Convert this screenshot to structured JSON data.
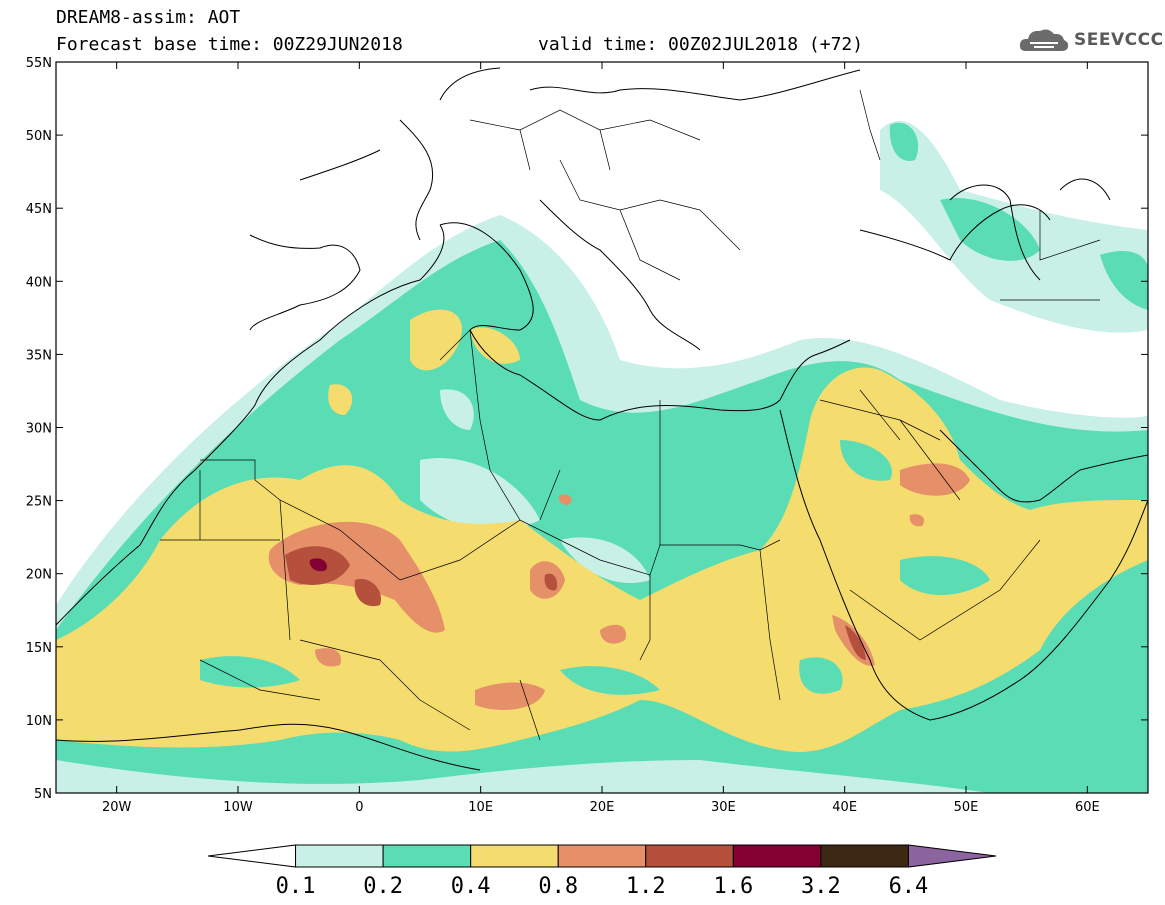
{
  "header": {
    "title": "DREAM8-assim: AOT",
    "base_time": "Forecast base time: 00Z29JUN2018",
    "valid_time": "valid time: 00Z02JUL2018 (+72)"
  },
  "logo": {
    "text": "SEEVCCC",
    "icon": "cloud-icon"
  },
  "map": {
    "lon_range": [
      -25,
      65
    ],
    "lat_range": [
      5,
      55
    ],
    "lat_ticks": [
      "55N",
      "50N",
      "45N",
      "40N",
      "35N",
      "30N",
      "25N",
      "20N",
      "15N",
      "10N",
      "5N"
    ],
    "lon_ticks": [
      "20W",
      "10W",
      "0",
      "10E",
      "20E",
      "30E",
      "40E",
      "50E",
      "60E"
    ]
  },
  "colorbar": {
    "labels": [
      "0.1",
      "0.2",
      "0.4",
      "0.8",
      "1.2",
      "1.6",
      "3.2",
      "6.4"
    ],
    "colors": [
      "#ffffff",
      "#c8f0e6",
      "#5adcb4",
      "#f5dc6e",
      "#e6906a",
      "#b4503c",
      "#820032",
      "#3c2814",
      "#8c64a0"
    ]
  }
}
